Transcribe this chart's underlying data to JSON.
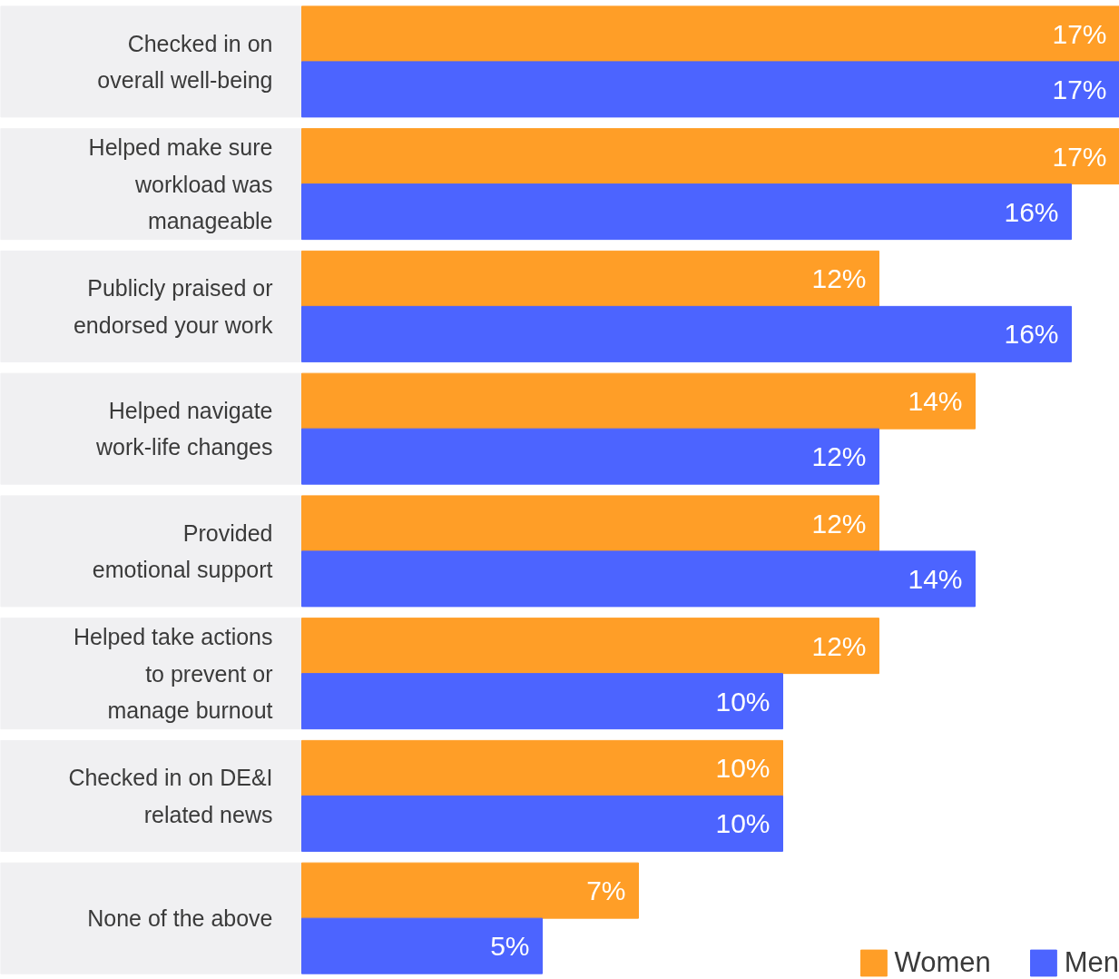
{
  "chart_data": {
    "type": "bar",
    "orientation": "horizontal",
    "categories": [
      "Checked in on\noverall well-being",
      "Helped make sure\nworkload was\nmanageable",
      "Publicly praised or\nendorsed your work",
      "Helped navigate\nwork-life changes",
      "Provided\nemotional support",
      "Helped take actions\nto prevent or\nmanage burnout",
      "Checked in on DE&I\nrelated news",
      "None of the above"
    ],
    "series": [
      {
        "name": "Women",
        "color": "#ff9e27",
        "values": [
          17,
          17,
          12,
          14,
          12,
          12,
          10,
          7
        ],
        "value_labels": [
          "17%",
          "17%",
          "12%",
          "14%",
          "12%",
          "12%",
          "10%",
          "7%"
        ]
      },
      {
        "name": "Men",
        "color": "#4c64ff",
        "values": [
          17,
          16,
          16,
          12,
          14,
          10,
          10,
          5
        ],
        "value_labels": [
          "17%",
          "16%",
          "16%",
          "12%",
          "14%",
          "10%",
          "10%",
          "5%"
        ]
      }
    ],
    "legend": "bottom right"
  }
}
